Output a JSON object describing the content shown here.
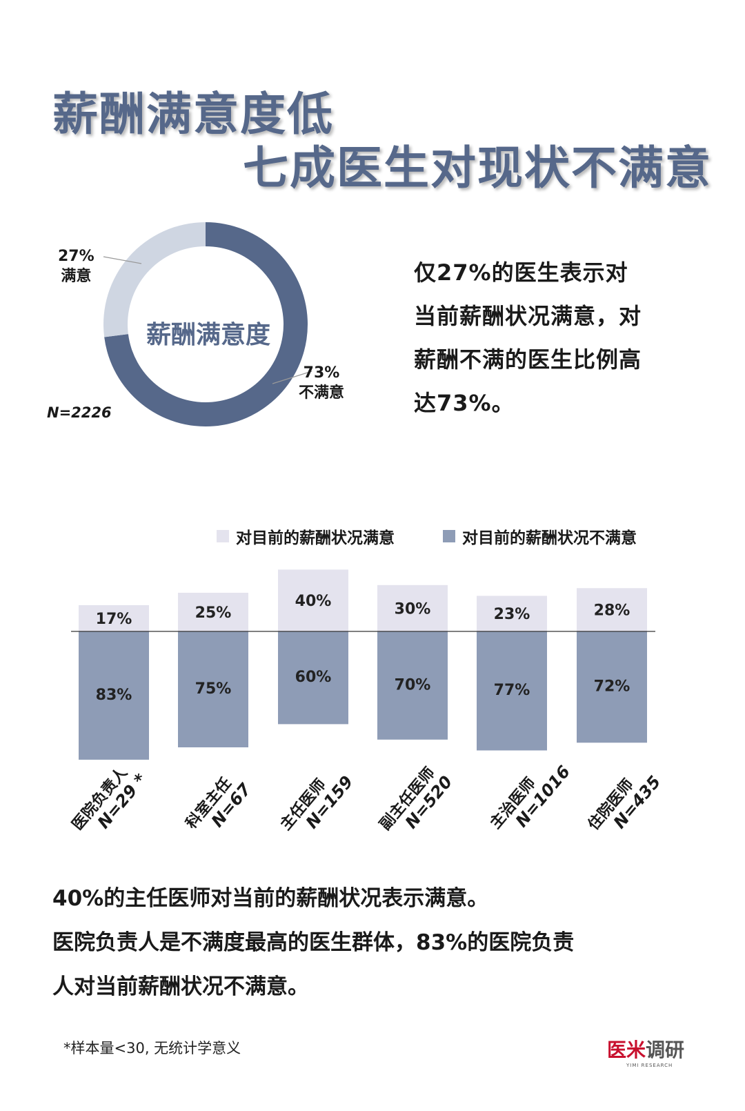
{
  "title": {
    "line1": "薪酬满意度低",
    "line2": "七成医生对现状不满意"
  },
  "donut": {
    "center_label": "薪酬满意度",
    "n_label": "N=2226",
    "satisfied": {
      "percent_text": "27%",
      "label": "满意",
      "value": 27,
      "color": "#cfd6e2"
    },
    "unsatisfied": {
      "percent_text": "73%",
      "label": "不满意",
      "value": 73,
      "color": "#56688a"
    }
  },
  "summary1": [
    "仅27%的医生表示对",
    "当前薪酬状况满意，对",
    "薪酬不满的医生比例高",
    "达73%。"
  ],
  "chart_data": {
    "type": "bar",
    "legend": [
      "对目前的薪酬状况满意",
      "对目前的薪酬状况不满意"
    ],
    "categories": [
      "医院负责人",
      "科室主任",
      "主任医师",
      "副主任医师",
      "主治医师",
      "住院医师"
    ],
    "n_labels": [
      "N=29 *",
      "N=67",
      "N=159",
      "N=520",
      "N=1016",
      "N=435"
    ],
    "series": [
      {
        "name": "对目前的薪酬状况满意",
        "values": [
          17,
          25,
          40,
          30,
          23,
          28
        ],
        "labels": [
          "17%",
          "25%",
          "40%",
          "30%",
          "23%",
          "28%"
        ],
        "color": "#e4e3ee"
      },
      {
        "name": "对目前的薪酬状况不满意",
        "values": [
          83,
          75,
          60,
          70,
          77,
          72
        ],
        "labels": [
          "83%",
          "75%",
          "60%",
          "70%",
          "77%",
          "72%"
        ],
        "color": "#8e9cb6"
      }
    ]
  },
  "summary2": [
    "40%的主任医师对当前的薪酬状况表示满意。",
    "医院负责人是不满度最高的医生群体，83%的医院负责",
    "人对当前薪酬状况不满意。"
  ],
  "footnote": "*样本量<30, 无统计学意义",
  "logo": {
    "part1": "医米",
    "part2": "调研",
    "sub": "YIMI RESEARCH"
  }
}
